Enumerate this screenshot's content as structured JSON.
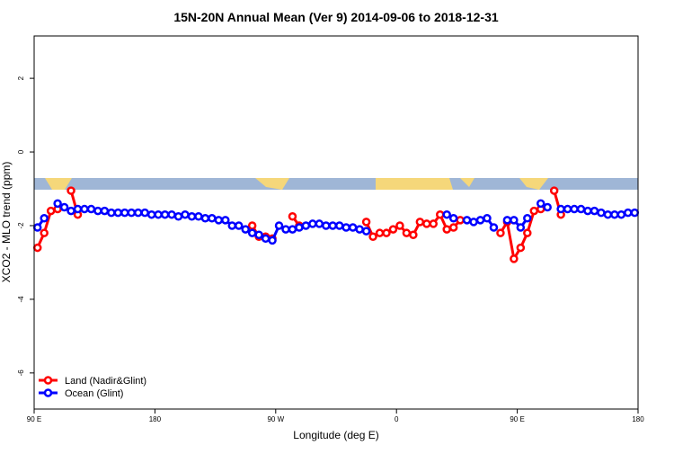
{
  "chart_data": {
    "type": "line",
    "title": "15N-20N Annual Mean (Ver 9)   2014-09-06 to 2018-12-31",
    "x_label": "Longitude (deg E)",
    "y_label": "XCO2 - MLO trend (ppm)",
    "xlim": [
      90,
      540
    ],
    "ylim": [
      -6.98,
      3.15
    ],
    "xticks": [
      {
        "value": 90,
        "label": "90 E"
      },
      180,
      {
        "value": 270,
        "label": "90 W"
      },
      {
        "value": 360,
        "label": "0"
      },
      {
        "value": 450,
        "label": "90 E"
      },
      {
        "value": 540,
        "label": "180"
      }
    ],
    "yticks": [
      -6,
      -4,
      -2,
      0,
      2
    ],
    "legend": "bottom-left",
    "x": [
      92.5,
      97.5,
      102.5,
      107.5,
      112.5,
      117.5,
      122.5,
      127.5,
      132.5,
      137.5,
      142.5,
      147.5,
      152.5,
      157.5,
      162.5,
      167.5,
      172.5,
      177.5,
      182.5,
      187.5,
      192.5,
      197.5,
      202.5,
      207.5,
      212.5,
      217.5,
      222.5,
      227.5,
      232.5,
      237.5,
      242.5,
      247.5,
      252.5,
      257.5,
      262.5,
      267.5,
      272.5,
      277.5,
      282.5,
      287.5,
      292.5,
      297.5,
      302.5,
      307.5,
      312.5,
      317.5,
      322.5,
      327.5,
      332.5,
      337.5,
      342.5,
      347.5,
      352.5,
      357.5,
      362.5,
      367.5,
      372.5,
      377.5,
      382.5,
      387.5,
      392.5,
      397.5,
      402.5,
      407.5,
      412.5,
      417.5,
      422.5,
      427.5,
      432.5,
      437.5,
      442.5,
      447.5,
      452.5,
      457.5,
      462.5,
      467.5,
      472.5,
      477.5,
      482.5,
      487.5,
      492.5,
      497.5,
      502.5,
      507.5,
      512.5,
      517.5,
      522.5,
      527.5,
      532.5,
      537.5
    ],
    "series": [
      {
        "name": "Land (Nadir&Glint)",
        "color": "#ff0000",
        "values": [
          -2.6,
          -2.2,
          -1.6,
          -1.55,
          null,
          -1.05,
          -1.7,
          null,
          null,
          null,
          null,
          null,
          null,
          null,
          null,
          null,
          null,
          null,
          null,
          null,
          null,
          null,
          null,
          null,
          null,
          null,
          null,
          null,
          null,
          null,
          null,
          null,
          -2.0,
          -2.3,
          -2.3,
          -2.35,
          null,
          null,
          -1.75,
          -2.0,
          null,
          null,
          null,
          null,
          null,
          null,
          null,
          null,
          null,
          -1.9,
          -2.3,
          -2.2,
          -2.2,
          -2.1,
          -2.0,
          -2.2,
          -2.25,
          -1.9,
          -1.95,
          -1.95,
          -1.7,
          -2.1,
          -2.05,
          -1.85,
          null,
          null,
          null,
          null,
          null,
          -2.2,
          -1.9,
          -2.9,
          -2.6,
          -2.2,
          -1.6,
          -1.55,
          null,
          -1.05,
          -1.7,
          null,
          null,
          null,
          null,
          null,
          null,
          null,
          null,
          null,
          null,
          null
        ]
      },
      {
        "name": "Ocean (Glint)",
        "color": "#0000ff",
        "values": [
          -2.05,
          -1.8,
          null,
          -1.4,
          -1.5,
          -1.6,
          -1.55,
          -1.55,
          -1.55,
          -1.6,
          -1.6,
          -1.65,
          -1.65,
          -1.65,
          -1.65,
          -1.65,
          -1.65,
          -1.7,
          -1.7,
          -1.7,
          -1.7,
          -1.75,
          -1.7,
          -1.75,
          -1.75,
          -1.8,
          -1.8,
          -1.85,
          -1.85,
          -2.0,
          -2.0,
          -2.1,
          -2.2,
          -2.25,
          -2.35,
          -2.4,
          -2.0,
          -2.1,
          -2.1,
          -2.05,
          -2.0,
          -1.95,
          -1.95,
          -2.0,
          -2.0,
          -2.0,
          -2.05,
          -2.05,
          -2.1,
          -2.15,
          null,
          null,
          null,
          null,
          null,
          null,
          null,
          null,
          null,
          null,
          null,
          -1.7,
          -1.8,
          null,
          -1.85,
          -1.9,
          -1.85,
          -1.8,
          -2.05,
          null,
          -1.85,
          -1.85,
          -2.05,
          -1.8,
          null,
          -1.4,
          -1.5,
          null,
          -1.55,
          -1.55,
          -1.55,
          -1.55,
          -1.6,
          -1.6,
          -1.65,
          -1.7,
          -1.7,
          -1.7,
          -1.65,
          -1.65
        ]
      }
    ]
  }
}
